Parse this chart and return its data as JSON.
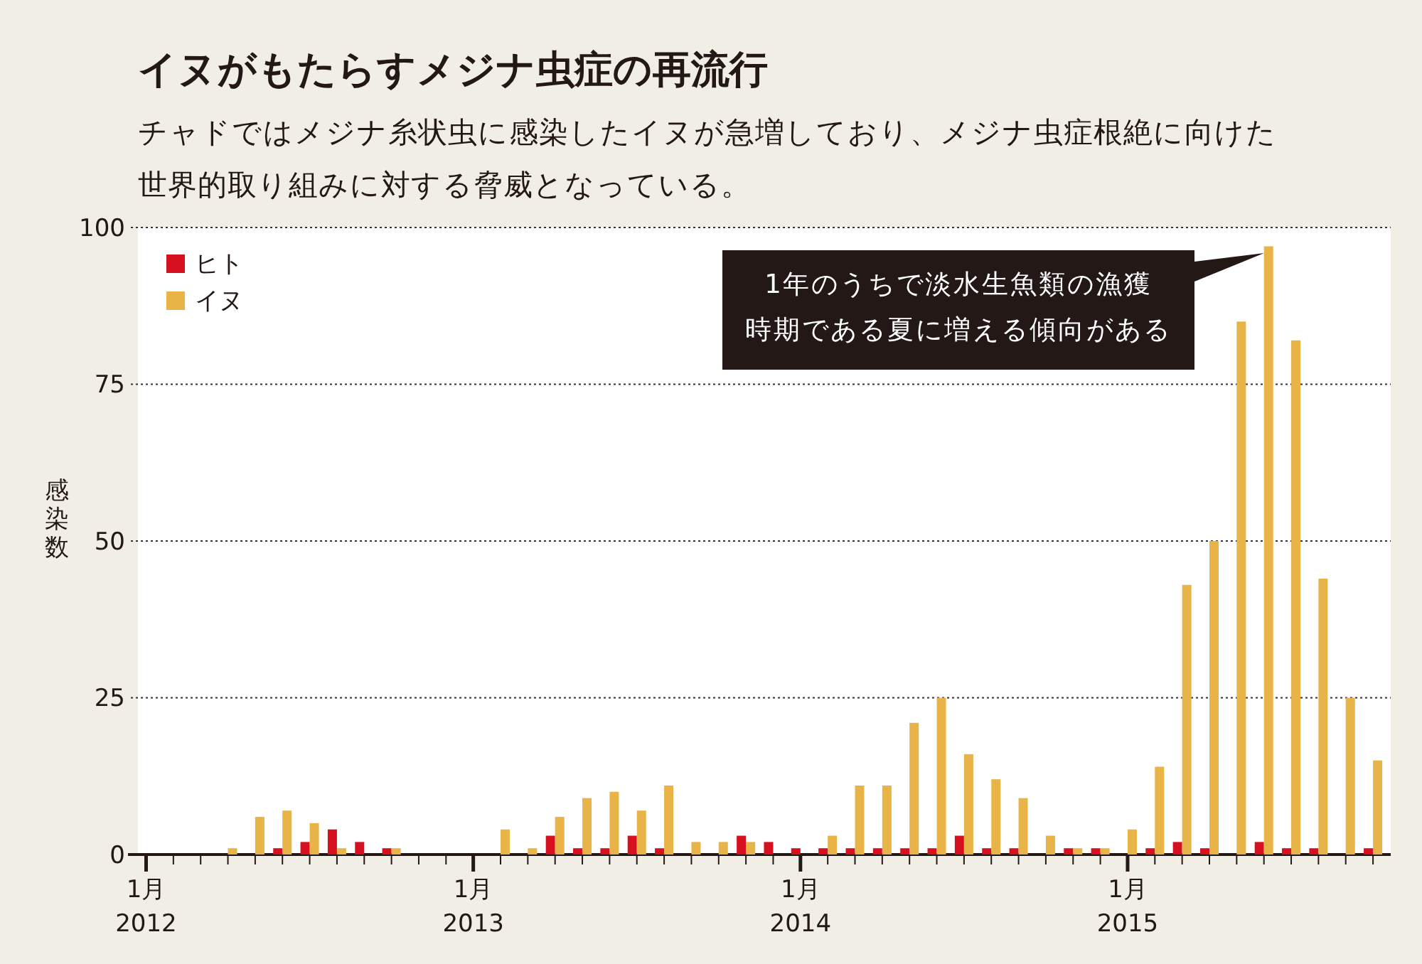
{
  "chart_data": {
    "type": "bar",
    "title": "イヌがもたらすメジナ虫症の再流行",
    "subtitle": "チャドではメジナ糸状虫に感染したイヌが急増しており、メジナ虫症根絶に向けた世界的取り組みに対する脅威となっている。",
    "ylabel": "感染数",
    "categories": [
      "1月\n2012",
      null,
      null,
      null,
      null,
      null,
      null,
      null,
      null,
      null,
      null,
      null,
      "1月\n2013",
      null,
      null,
      null,
      null,
      null,
      null,
      null,
      null,
      null,
      null,
      null,
      "1月\n2014",
      null,
      null,
      null,
      null,
      null,
      null,
      null,
      null,
      null,
      null,
      null,
      "1月\n2015",
      null,
      null,
      null,
      null,
      null,
      null,
      null,
      null,
      null
    ],
    "series": [
      {
        "name": "ヒト",
        "color": "#d7101f",
        "values": [
          0,
          0,
          0,
          0,
          0,
          1,
          2,
          4,
          2,
          1,
          0,
          0,
          0,
          0,
          0,
          3,
          1,
          1,
          3,
          1,
          0,
          0,
          3,
          2,
          1,
          1,
          1,
          1,
          1,
          1,
          3,
          1,
          1,
          0,
          1,
          1,
          0,
          1,
          2,
          1,
          0,
          2,
          1,
          1,
          0,
          1
        ]
      },
      {
        "name": "イヌ",
        "color": "#e8b347",
        "values": [
          0,
          0,
          0,
          1,
          6,
          7,
          5,
          1,
          0,
          1,
          0,
          0,
          0,
          4,
          1,
          6,
          9,
          10,
          7,
          11,
          2,
          2,
          2,
          0,
          0,
          3,
          11,
          11,
          21,
          25,
          16,
          12,
          9,
          3,
          1,
          1,
          4,
          14,
          43,
          50,
          85,
          97,
          82,
          44,
          25,
          15
        ]
      }
    ],
    "ylim": [
      0,
      100
    ],
    "yticks": [
      0,
      25,
      50,
      75,
      100
    ],
    "grid": "y",
    "legend": "top left",
    "annotations": [
      "1年のうちで淡水生魚類の漁獲時期である夏に増える傾向がある"
    ]
  }
}
